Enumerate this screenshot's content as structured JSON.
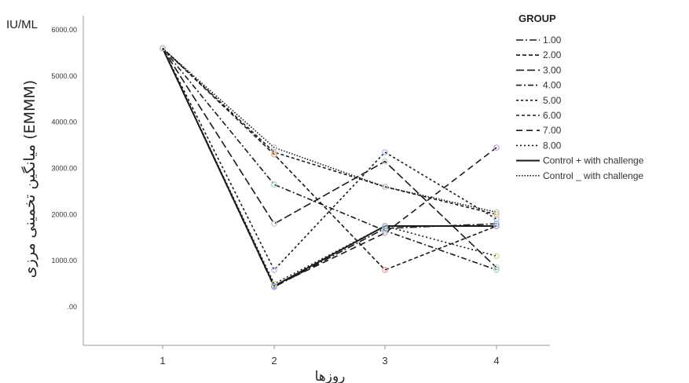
{
  "chart_data": {
    "type": "line",
    "unit_label": "IU/ML",
    "ylabel": "میانگین تخمینی مرزی (EMMM)",
    "xlabel": "روزها",
    "categories": [
      "1",
      "2",
      "3",
      "4"
    ],
    "ylim": [
      0,
      6000
    ],
    "yticks": [
      ".00",
      "1000.00",
      "2000.00",
      "3000.00",
      "4000.00",
      "5000.00",
      "6000.00"
    ],
    "legend_title": "GROUP",
    "legend_position": "top-right",
    "grid": false,
    "series": [
      {
        "name": "1.00",
        "dash": "9 3 2 3",
        "values": [
          5600,
          430,
          1700,
          1800
        ]
      },
      {
        "name": "2.00",
        "dash": "5 3",
        "values": [
          5600,
          3300,
          800,
          1750
        ]
      },
      {
        "name": "3.00",
        "dash": "10 4",
        "values": [
          5600,
          1800,
          3150,
          850
        ]
      },
      {
        "name": "4.00",
        "dash": "7 3 2 3",
        "values": [
          5600,
          2650,
          1650,
          800
        ]
      },
      {
        "name": "5.00",
        "dash": "3 3",
        "values": [
          5600,
          800,
          3350,
          1900
        ]
      },
      {
        "name": "6.00",
        "dash": "4 3",
        "values": [
          5600,
          3350,
          2600,
          2000
        ]
      },
      {
        "name": "7.00",
        "dash": "8 5",
        "values": [
          5600,
          450,
          1600,
          3450
        ]
      },
      {
        "name": "8.00",
        "dash": "2 3",
        "values": [
          5600,
          500,
          1750,
          1100
        ]
      },
      {
        "name": "Control + with challenge",
        "dash": "",
        "values": [
          5600,
          450,
          1750,
          1750
        ]
      },
      {
        "name": "Control _ with challenge",
        "dash": "1.5 2",
        "values": [
          5600,
          3450,
          2600,
          2050
        ]
      }
    ],
    "marker_colors": [
      "#8fb4d8",
      "#e59a9a",
      "#c8c8c8",
      "#9fd4b8",
      "#a9b6e8",
      "#e8c48a",
      "#c0a0d8",
      "#d8d88a",
      "#9aa8c8",
      "#c0c0c0"
    ]
  }
}
